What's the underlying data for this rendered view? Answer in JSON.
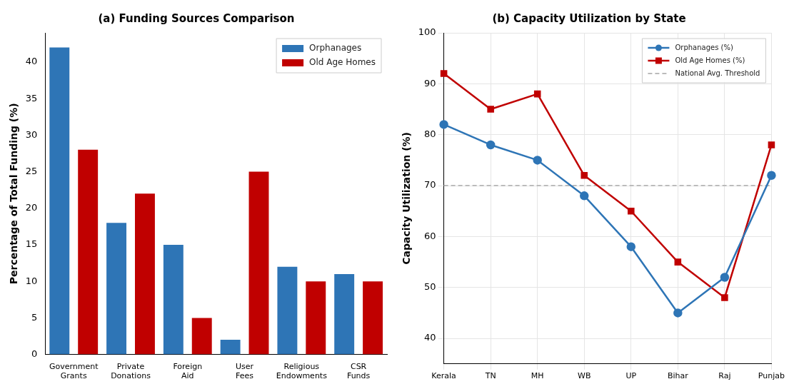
{
  "chart_data": [
    {
      "type": "bar",
      "title": "(a) Funding Sources Comparison",
      "ylabel": "Percentage of Total Funding (%)",
      "categories": [
        "Government Grants",
        "Private Donations",
        "Foreign Aid",
        "User Fees",
        "Religious Endowments",
        "CSR Funds"
      ],
      "series": [
        {
          "name": "Orphanages",
          "color": "#2e75b6",
          "values": [
            42,
            18,
            15,
            2,
            12,
            11
          ]
        },
        {
          "name": "Old Age Homes",
          "color": "#c00000",
          "values": [
            28,
            22,
            5,
            25,
            10,
            10
          ]
        }
      ],
      "ylim": [
        0,
        44
      ],
      "yticks": [
        0,
        5,
        10,
        15,
        20,
        25,
        30,
        35,
        40
      ],
      "grid": false,
      "legend": "top right"
    },
    {
      "type": "line",
      "title": "(b) Capacity Utilization by State",
      "ylabel": "Capacity Utilization (%)",
      "categories": [
        "Kerala",
        "TN",
        "MH",
        "WB",
        "UP",
        "Bihar",
        "Raj",
        "Punjab"
      ],
      "series": [
        {
          "name": "Orphanages (%)",
          "color": "#2e75b6",
          "marker": "circle",
          "values": [
            82,
            78,
            75,
            68,
            58,
            45,
            52,
            72
          ]
        },
        {
          "name": "Old Age Homes (%)",
          "color": "#c00000",
          "marker": "square",
          "values": [
            92,
            85,
            88,
            72,
            65,
            55,
            48,
            78
          ]
        }
      ],
      "ref_lines": [
        {
          "axis": "y",
          "value": 70,
          "label": "National Avg. Threshold",
          "color": "#bbbbbb",
          "line_style": "dashed"
        }
      ],
      "ylim": [
        35,
        100
      ],
      "yticks": [
        40,
        50,
        60,
        70,
        80,
        90,
        100
      ],
      "grid": true,
      "legend": "top right",
      "line_style": "solid"
    }
  ]
}
